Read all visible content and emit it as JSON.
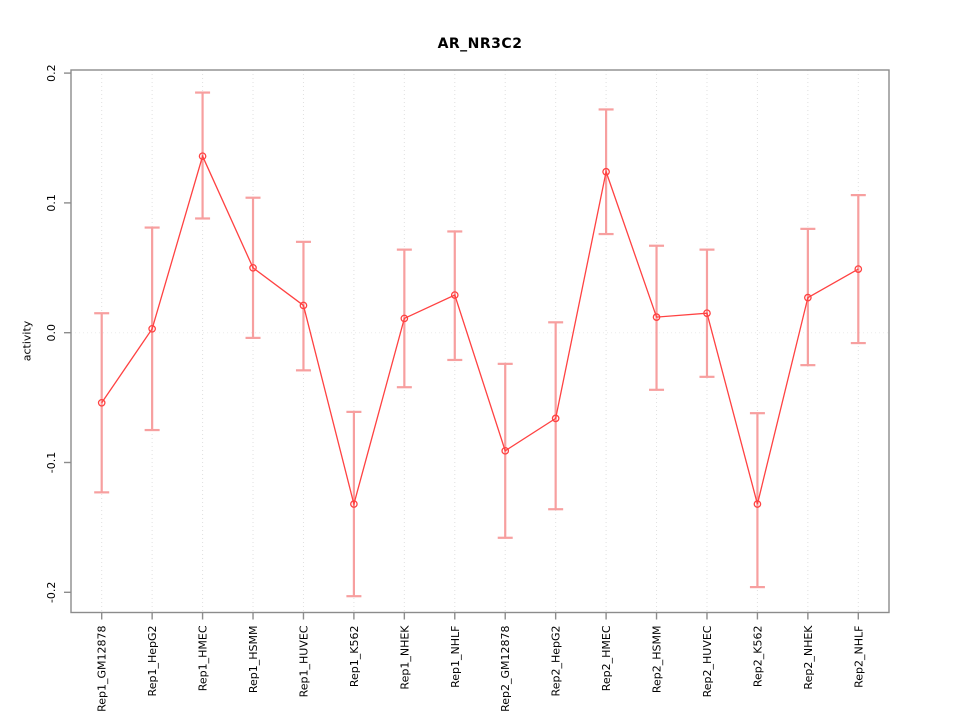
{
  "chart_data": {
    "type": "line",
    "title": "AR_NR3C2",
    "xlabel": "",
    "ylabel": "activity",
    "ylim": [
      -0.215,
      0.209
    ],
    "ytick_labels": [
      "-0.2",
      "-0.1",
      "0.0",
      "0.1",
      "0.2"
    ],
    "ytick_values": [
      -0.2,
      -0.1,
      0.0,
      0.1,
      0.2
    ],
    "grid": "vertical dotted gridline at each category; dotted horizontal line at y=0",
    "legend": "none",
    "marker": "open-circle",
    "error_bars": true,
    "categories": [
      "Rep1_GM12878",
      "Rep1_HepG2",
      "Rep1_HMEC",
      "Rep1_HSMM",
      "Rep1_HUVEC",
      "Rep1_K562",
      "Rep1_NHEK",
      "Rep1_NHLF",
      "Rep2_GM12878",
      "Rep2_HepG2",
      "Rep2_HMEC",
      "Rep2_HSMM",
      "Rep2_HUVEC",
      "Rep2_K562",
      "Rep2_NHEK",
      "Rep2_NHLF"
    ],
    "series": [
      {
        "name": "activity",
        "values": [
          -0.054,
          0.003,
          0.136,
          0.05,
          0.021,
          -0.132,
          0.011,
          0.029,
          -0.091,
          -0.066,
          0.124,
          0.012,
          0.015,
          -0.132,
          0.027,
          0.049
        ],
        "ci_low": [
          -0.123,
          -0.075,
          0.088,
          -0.004,
          -0.029,
          -0.203,
          -0.042,
          -0.021,
          -0.158,
          -0.136,
          0.076,
          -0.044,
          -0.034,
          -0.196,
          -0.025,
          -0.008
        ],
        "ci_high": [
          0.015,
          0.081,
          0.185,
          0.104,
          0.07,
          -0.061,
          0.064,
          0.078,
          -0.024,
          0.008,
          0.172,
          0.067,
          0.064,
          -0.062,
          0.08,
          0.106
        ]
      }
    ]
  },
  "colors": {
    "line": "#ff4242",
    "marker": "#ff4242",
    "error_bar": "#f79f9f",
    "grid": "#e0e0e0",
    "zero_line": "#ececec",
    "axis": "#8c8c8c",
    "text": "#000000",
    "background": "#ffffff"
  }
}
